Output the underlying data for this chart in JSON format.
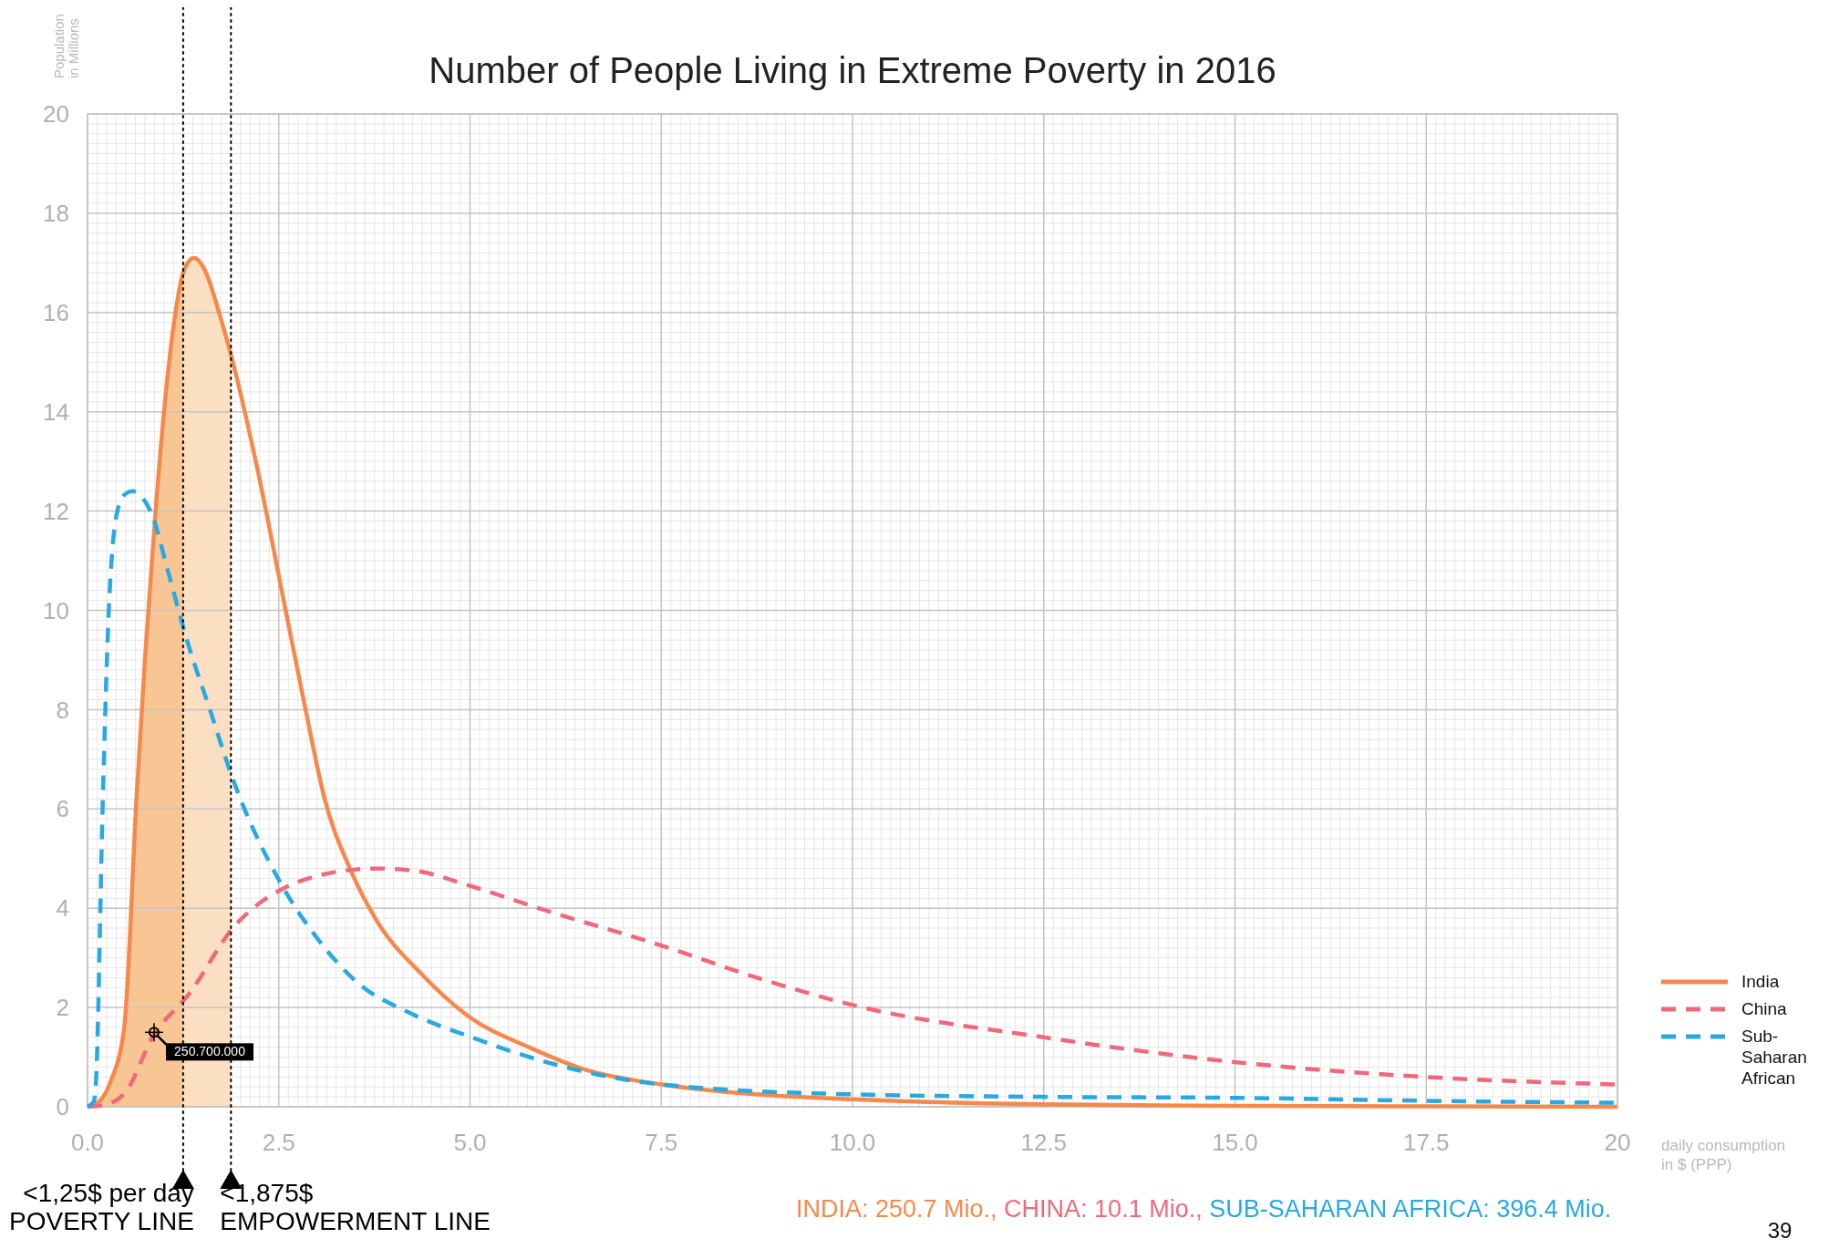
{
  "chart_data": {
    "type": "line",
    "title": "Number of People Living in Extreme Poverty in 2016",
    "xlabel": "daily consumption\nin $ (PPP)",
    "ylabel": "Population\nin Millions",
    "xlim": [
      0,
      20
    ],
    "ylim": [
      0,
      20
    ],
    "xticks": [
      {
        "value": 0,
        "label": "0.0"
      },
      {
        "value": 2.5,
        "label": "2.5"
      },
      {
        "value": 5,
        "label": "5.0"
      },
      {
        "value": 7.5,
        "label": "7.5"
      },
      {
        "value": 10,
        "label": "10.0"
      },
      {
        "value": 12.5,
        "label": "12.5"
      },
      {
        "value": 15,
        "label": "15.0"
      },
      {
        "value": 17.5,
        "label": "17.5"
      },
      20
    ],
    "yticks": [
      0,
      2,
      4,
      6,
      8,
      10,
      12,
      14,
      16,
      18,
      20
    ],
    "grid": true,
    "legend": "right",
    "marker": "none",
    "series": [
      {
        "name": "India",
        "color": "#f5894b",
        "line_style": "solid",
        "x": [
          0,
          0.15,
          0.3,
          0.48,
          0.64,
          0.75,
          0.89,
          1.0,
          1.15,
          1.25,
          1.39,
          1.55,
          1.7,
          1.9,
          2.2,
          2.59,
          2.85,
          3.1,
          3.43,
          3.8,
          4.35,
          5.0,
          5.77,
          6.5,
          7.5,
          8.5,
          10,
          12.5,
          15,
          17.5,
          20
        ],
        "values": [
          0,
          0.1,
          0.5,
          1.6,
          6.2,
          9,
          12,
          14,
          16,
          16.8,
          17.1,
          16.8,
          16.1,
          15,
          13,
          10,
          8,
          6.2,
          4.8,
          3.7,
          2.7,
          1.8,
          1.2,
          0.75,
          0.45,
          0.28,
          0.15,
          0.05,
          0.02,
          0.01,
          0
        ]
      },
      {
        "type": "area",
        "color": "#f8c694",
        "x": [
          0,
          0.15,
          0.3,
          0.48,
          0.64,
          0.75,
          0.89,
          1.0,
          1.15,
          1.25
        ],
        "values": [
          0,
          0.1,
          0.5,
          1.6,
          6.2,
          9,
          12,
          14,
          16,
          16.8
        ]
      },
      {
        "type": "area",
        "color": "#fbdfc2",
        "x": [
          1.25,
          1.39,
          1.55,
          1.7,
          1.875
        ],
        "values": [
          16.8,
          17.1,
          16.8,
          16.1,
          15.1
        ]
      },
      {
        "name": "China",
        "color": "#f0697a",
        "line_style": "dashed",
        "x": [
          0,
          0.25,
          0.5,
          0.85,
          1.34,
          1.9,
          2.56,
          3.0,
          3.51,
          3.8,
          4.3,
          5.0,
          6.0,
          7.5,
          8.75,
          10,
          12.5,
          15,
          17.5,
          20
        ],
        "values": [
          0,
          0.05,
          0.3,
          1.4,
          2.3,
          3.6,
          4.4,
          4.65,
          4.78,
          4.8,
          4.75,
          4.45,
          3.95,
          3.25,
          2.6,
          2.05,
          1.4,
          0.9,
          0.6,
          0.45
        ]
      },
      {
        "name": "Sub-Saharan African",
        "color": "#29a9e0",
        "line_style": "dashed",
        "x": [
          0,
          0.08,
          0.11,
          0.2,
          0.27,
          0.39,
          0.5,
          0.59,
          0.7,
          0.85,
          1.05,
          1.3,
          1.6,
          1.9,
          2.49,
          3.0,
          3.53,
          4.2,
          5.02,
          6.0,
          7.5,
          10,
          12.5,
          15,
          17.5,
          20
        ],
        "values": [
          0,
          0.1,
          0.5,
          6.2,
          9.7,
          12,
          12.35,
          12.4,
          12.3,
          11.9,
          10.8,
          9.4,
          8,
          6.6,
          4.6,
          3.4,
          2.5,
          1.9,
          1.4,
          0.9,
          0.45,
          0.25,
          0.2,
          0.18,
          0.12,
          0.08
        ]
      }
    ],
    "ref_lines": [
      {
        "axis": "x",
        "value": 1.25,
        "label": "<1,25$ per day\nPOVERTY LINE",
        "line_style": "dotted",
        "color": "#000000"
      },
      {
        "axis": "x",
        "value": 1.875,
        "label": "<1,875$\nEMPOWERMENT LINE",
        "line_style": "dotted",
        "color": "#000000"
      }
    ],
    "annotations": [
      {
        "text": "250.700.000",
        "x": 0.87,
        "y": 1.5
      },
      "INDIA: 250.7 Mio.,",
      "CHINA: 10.1 Mio.,",
      "SUB-SAHARAN AFRICA: 396.4 Mio.",
      "39"
    ]
  }
}
